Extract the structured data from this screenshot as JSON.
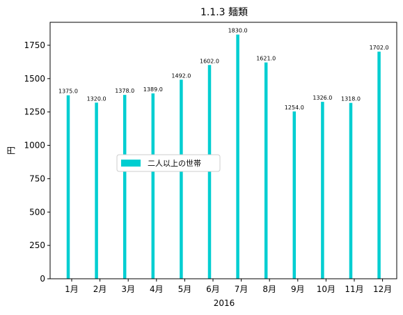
{
  "chart_data": {
    "type": "bar",
    "title": "1.1.3 麺類",
    "xlabel": "2016",
    "ylabel": "円",
    "categories": [
      "1月",
      "2月",
      "3月",
      "4月",
      "5月",
      "6月",
      "7月",
      "8月",
      "9月",
      "10月",
      "11月",
      "12月"
    ],
    "series": [
      {
        "name": "二人以上の世帯",
        "color": "#00CED1",
        "values": [
          1375.0,
          1320.0,
          1378.0,
          1389.0,
          1492.0,
          1602.0,
          1830.0,
          1621.0,
          1254.0,
          1326.0,
          1318.0,
          1702.0
        ]
      }
    ],
    "data_labels": [
      "1375.0",
      "1320.0",
      "1378.0",
      "1389.0",
      "1492.0",
      "1602.0",
      "1830.0",
      "1621.0",
      "1254.0",
      "1326.0",
      "1318.0",
      "1702.0"
    ],
    "ylim": [
      0,
      1922
    ],
    "yticks": [
      0,
      250,
      500,
      750,
      1000,
      1250,
      1500,
      1750
    ],
    "grid": false,
    "legend_position": "center-left"
  }
}
